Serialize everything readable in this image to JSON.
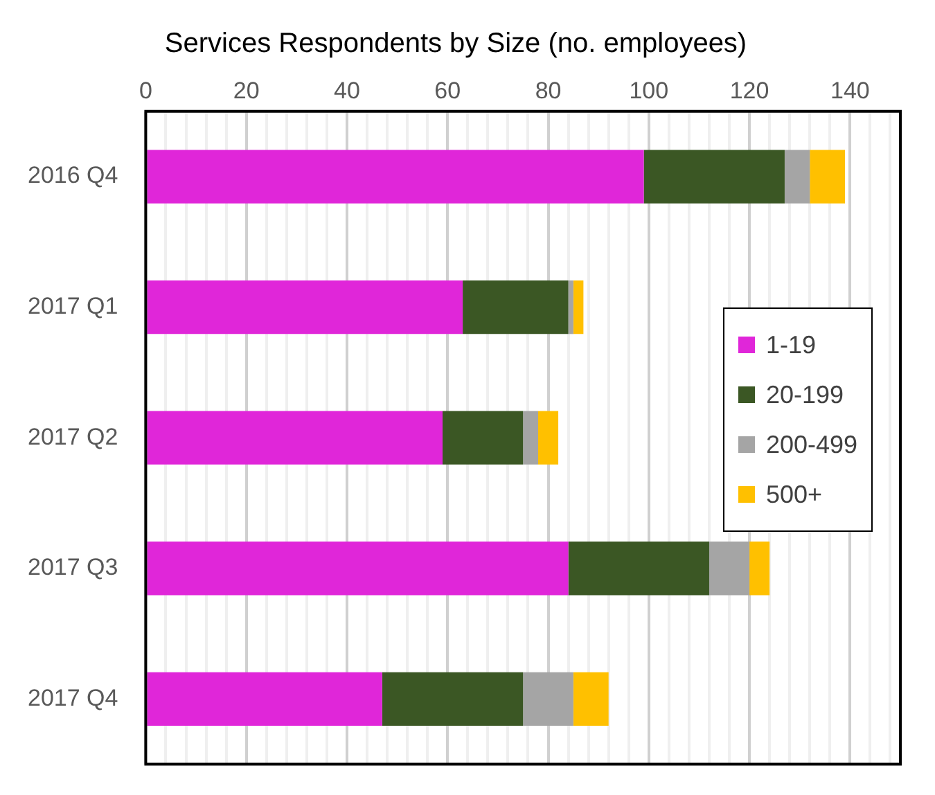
{
  "chart_data": {
    "type": "bar",
    "orientation": "horizontal",
    "stacked": true,
    "title": "Services Respondents by Size (no. employees)",
    "categories": [
      "2016 Q4",
      "2017 Q1",
      "2017 Q2",
      "2017 Q3",
      "2017 Q4"
    ],
    "series": [
      {
        "name": "1-19",
        "color": "#e026d9",
        "values": [
          99,
          63,
          59,
          84,
          47
        ]
      },
      {
        "name": "20-199",
        "color": "#3b5724",
        "values": [
          28,
          21,
          16,
          28,
          28
        ]
      },
      {
        "name": "200-499",
        "color": "#a5a5a5",
        "values": [
          5,
          1,
          3,
          8,
          10
        ]
      },
      {
        "name": "500+",
        "color": "#ffc000",
        "values": [
          7,
          2,
          4,
          4,
          7
        ]
      }
    ],
    "xlim": [
      0,
      150
    ],
    "xticks": [
      0,
      {
        "value": 4,
        "label": null
      },
      {
        "value": 8,
        "label": null
      },
      {
        "value": 12,
        "label": null
      },
      {
        "value": 16,
        "label": null
      },
      20,
      {
        "value": 24,
        "label": null
      },
      {
        "value": 28,
        "label": null
      },
      {
        "value": 32,
        "label": null
      },
      {
        "value": 36,
        "label": null
      },
      40,
      {
        "value": 44,
        "label": null
      },
      {
        "value": 48,
        "label": null
      },
      {
        "value": 52,
        "label": null
      },
      {
        "value": 56,
        "label": null
      },
      60,
      {
        "value": 64,
        "label": null
      },
      {
        "value": 68,
        "label": null
      },
      {
        "value": 72,
        "label": null
      },
      {
        "value": 76,
        "label": null
      },
      80,
      {
        "value": 84,
        "label": null
      },
      {
        "value": 88,
        "label": null
      },
      {
        "value": 92,
        "label": null
      },
      {
        "value": 96,
        "label": null
      },
      100,
      {
        "value": 104,
        "label": null
      },
      {
        "value": 108,
        "label": null
      },
      {
        "value": 112,
        "label": null
      },
      {
        "value": 116,
        "label": null
      },
      120,
      {
        "value": 124,
        "label": null
      },
      {
        "value": 128,
        "label": null
      },
      {
        "value": 132,
        "label": null
      },
      {
        "value": 136,
        "label": null
      },
      140,
      {
        "value": 144,
        "label": null
      },
      {
        "value": 148,
        "label": null
      }
    ],
    "grid": "x",
    "legend": "right"
  }
}
